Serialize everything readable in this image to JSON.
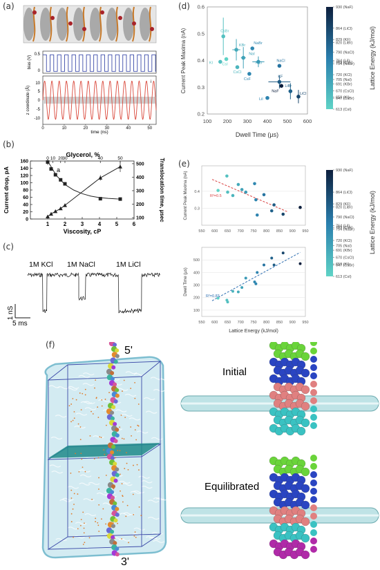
{
  "panels": {
    "a": "(a)",
    "b": "(b)",
    "c": "(c)",
    "d": "(d)",
    "e": "(e)",
    "f": "(f)"
  },
  "colors": {
    "trace_red": "#d9473a",
    "trace_blue": "#3a49a8",
    "lattice_low": "#5fd3c6",
    "lattice_high": "#0d1f3d",
    "trend_red": "#d94040",
    "trend_blue": "#2b6cb0",
    "membrane": "#1f8a8a",
    "box": "#3b4aa8",
    "water": "#9fd6e6"
  },
  "panel_a": {
    "bias_ylabel": "bias (V)",
    "z_ylabel": "z coordinate (Å)",
    "xlabel": "time (ns)",
    "bias_ticks": [
      "0",
      "0.5"
    ],
    "z_ticks": [
      "10",
      "5",
      "0",
      "-5",
      "-10"
    ],
    "z_inset_label": "i",
    "x_ticks": [
      "0",
      "10",
      "20",
      "30",
      "40",
      "50"
    ]
  },
  "panel_b": {
    "top_axis_label": "Glycerol, %",
    "top_ticks": [
      "0",
      "10",
      "20",
      "30",
      "40",
      "50"
    ],
    "xlabel": "Viscosity, cP",
    "ylabel_left": "Current drop, pA",
    "ylabel_right": "Translocation time, µsec",
    "inset_label": "a",
    "x_ticks": [
      "1",
      "2",
      "3",
      "4",
      "5",
      "6"
    ],
    "yl_ticks": [
      "0",
      "20",
      "40",
      "60",
      "80",
      "100",
      "120",
      "140",
      "160"
    ],
    "yr_ticks": [
      "100",
      "200",
      "300",
      "400",
      "500"
    ]
  },
  "panel_c": {
    "labels": [
      "1M KCl",
      "1M NaCl",
      "1M LiCl"
    ],
    "scale_y": "1 nS",
    "scale_x": "5 ms"
  },
  "panel_d": {
    "xlabel": "Dwell Time (µs)",
    "ylabel": "Current Peak Maxima (nA)",
    "x_ticks": [
      "100",
      "200",
      "300",
      "400",
      "500",
      "600"
    ],
    "y_ticks": [
      "0.2",
      "0.3",
      "0.4",
      "0.5",
      "0.6"
    ],
    "colorbar_label": "Lattice Energy (kJ/mol)",
    "colorbar_ticks": [
      "930 (NaF)",
      "864 (LiCl)",
      "829 (KF)",
      "820 (LiBr)",
      "790 (NaCl)",
      "764 (LiI)",
      "759 (CsF)",
      "754 (NaBr)",
      "720 (KCl)",
      "705 (NaI)",
      "691 (KBr)",
      "670 (CsCl)",
      "650 (KI)",
      "647 (CsBr)",
      "613 (CsI)"
    ]
  },
  "panel_e": {
    "top_ylabel": "Current Peak Maxima (nA)",
    "bottom_ylabel": "Dwell Time (µs)",
    "xlabel": "Lattice Energy (kJ/mol)",
    "top_r2": "R²=0.5",
    "bottom_r2": "R²=0.83",
    "x_ticks": [
      "550",
      "600",
      "650",
      "700",
      "750",
      "800",
      "850",
      "900",
      "950"
    ],
    "top_y_ticks": [
      "0.4",
      "0.3"
    ],
    "bottom_y_ticks": [
      "500",
      "400",
      "300",
      "200",
      "100"
    ],
    "colorbar_label": "Lattice Energy (kJ/mol)",
    "colorbar_ticks": [
      "930 (NaF)",
      "864 (LiCl)",
      "829 (KF)",
      "820 (LiBr)",
      "790 (NaCl)",
      "764 (LiI)",
      "759 (CsF)",
      "754 (NaBr)",
      "720 (KCl)",
      "705 (NaI)",
      "691 (KBr)",
      "670 (CsCl)",
      "650 (KI)",
      "647 (CsBr)",
      "613 (CsI)"
    ]
  },
  "panel_f": {
    "label_5prime": "5'",
    "label_3prime": "3'",
    "label_initial": "Initial",
    "label_equilibrated": "Equilibrated"
  },
  "chart_data": [
    {
      "id": "a_bias",
      "type": "line",
      "xlabel": "time (ns)",
      "ylabel": "bias (V)",
      "xlim": [
        0,
        53
      ],
      "ylim": [
        0,
        0.6
      ],
      "waveform": "square",
      "period_ns": 3.4,
      "low": 0.05,
      "high": 0.5
    },
    {
      "id": "a_z",
      "type": "line",
      "xlabel": "time (ns)",
      "ylabel": "z coordinate (Å)",
      "xlim": [
        0,
        53
      ],
      "ylim": [
        -12,
        12
      ],
      "waveform": "sine",
      "period_ns": 3.4,
      "amplitude": 9.5
    },
    {
      "id": "b",
      "type": "line",
      "xlabel": "Viscosity, cP",
      "ylabel": "Current drop, pA",
      "y2label": "Translocation time, µsec",
      "xlim": [
        0,
        6
      ],
      "ylim": [
        0,
        160
      ],
      "y2lim": [
        90,
        520
      ],
      "series": [
        {
          "axis": "left",
          "marker": "square",
          "x": [
            1.0,
            1.2,
            1.45,
            1.75,
            2.0,
            4.05,
            5.2
          ],
          "y": [
            157,
            138,
            122,
            108,
            97,
            56,
            55
          ],
          "err": [
            8,
            3,
            3,
            3,
            3,
            3,
            3
          ],
          "fit_x": [
            1.0,
            1.5,
            2.0,
            2.5,
            3.0,
            3.5,
            4.0,
            4.5,
            5.0,
            5.3
          ],
          "fit_y": [
            160,
            120,
            95,
            80,
            70,
            63,
            59,
            57,
            55.5,
            55
          ]
        },
        {
          "axis": "right",
          "marker": "triangle",
          "x": [
            1.0,
            1.2,
            1.45,
            1.75,
            2.0,
            4.05,
            5.2
          ],
          "y": [
            108,
            128,
            147,
            168,
            192,
            395,
            478
          ],
          "err": [
            5,
            5,
            5,
            6,
            10,
            20,
            40
          ]
        }
      ]
    },
    {
      "id": "d",
      "type": "scatter",
      "xlabel": "Dwell Time (µs)",
      "ylabel": "Current Peak Maxima (nA)",
      "xlim": [
        100,
        600
      ],
      "ylim": [
        0.2,
        0.6
      ],
      "points": [
        {
          "label": "CsBr",
          "x": 180,
          "y": 0.49,
          "e": 647,
          "ex": 0,
          "ey": 0.07
        },
        {
          "label": "KBr",
          "x": 245,
          "y": 0.44,
          "e": 691,
          "ex": 20,
          "ey": 0.04
        },
        {
          "label": "NaI",
          "x": 280,
          "y": 0.41,
          "e": 705,
          "ex": 12,
          "ey": 0.04
        },
        {
          "label": "NaBr",
          "x": 325,
          "y": 0.445,
          "e": 754,
          "ex": 0,
          "ey": 0
        },
        {
          "label": "CsI",
          "x": 195,
          "y": 0.405,
          "e": 613,
          "ex": 0,
          "ey": 0
        },
        {
          "label": "KI",
          "x": 165,
          "y": 0.395,
          "e": 650,
          "ex": 0,
          "ey": 0
        },
        {
          "label": "CsCl",
          "x": 250,
          "y": 0.375,
          "e": 670,
          "ex": 0,
          "ey": 0
        },
        {
          "label": "KCl",
          "x": 355,
          "y": 0.395,
          "e": 720,
          "ex": 30,
          "ey": 0.02
        },
        {
          "label": "CsF",
          "x": 310,
          "y": 0.35,
          "e": 759,
          "ex": 0,
          "ey": 0
        },
        {
          "label": "NaCl",
          "x": 460,
          "y": 0.38,
          "e": 790,
          "ex": 0,
          "ey": 0
        },
        {
          "label": "KF",
          "x": 460,
          "y": 0.32,
          "e": 829,
          "ex": 55,
          "ey": 0.025
        },
        {
          "label": "LiI",
          "x": 400,
          "y": 0.26,
          "e": 764,
          "ex": 0,
          "ey": 0
        },
        {
          "label": "NaF",
          "x": 470,
          "y": 0.305,
          "e": 930,
          "ex": 0,
          "ey": 0
        },
        {
          "label": "LiBr",
          "x": 515,
          "y": 0.285,
          "e": 820,
          "ex": 0,
          "ey": 0.03
        },
        {
          "label": "LiCl",
          "x": 555,
          "y": 0.265,
          "e": 864,
          "ex": 0,
          "ey": 0.025
        }
      ]
    },
    {
      "id": "e_top",
      "type": "scatter",
      "xlabel": "",
      "ylabel": "Current Peak Maxima (nA)",
      "xlim": [
        550,
        950
      ],
      "ylim": [
        0.2,
        0.55
      ],
      "x": [
        613,
        647,
        650,
        670,
        691,
        705,
        720,
        754,
        759,
        764,
        790,
        820,
        829,
        864,
        930
      ],
      "y": [
        0.405,
        0.49,
        0.395,
        0.375,
        0.44,
        0.41,
        0.395,
        0.445,
        0.35,
        0.26,
        0.38,
        0.285,
        0.32,
        0.265,
        0.305
      ],
      "trend": {
        "x": [
          590,
          880
        ],
        "y": [
          0.47,
          0.28
        ]
      }
    },
    {
      "id": "e_bottom",
      "type": "scatter",
      "xlabel": "Lattice Energy (kJ/mol)",
      "ylabel": "Dwell Time (µs)",
      "xlim": [
        550,
        950
      ],
      "ylim": [
        50,
        600
      ],
      "x": [
        613,
        647,
        650,
        670,
        691,
        705,
        720,
        754,
        759,
        764,
        790,
        820,
        829,
        864,
        930
      ],
      "y": [
        195,
        180,
        165,
        250,
        245,
        280,
        355,
        325,
        310,
        400,
        460,
        515,
        460,
        555,
        470
      ],
      "trend": {
        "x": [
          590,
          930
        ],
        "y": [
          175,
          560
        ]
      }
    }
  ]
}
